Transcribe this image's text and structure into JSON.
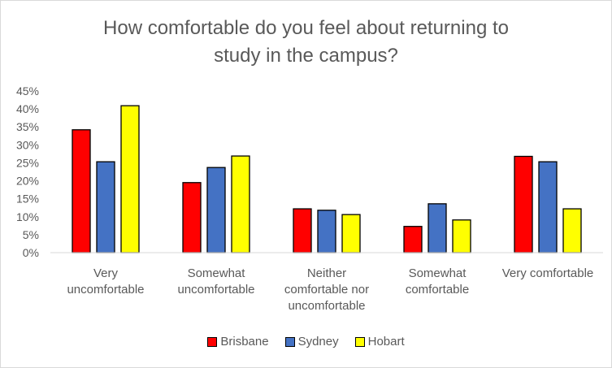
{
  "chart_data": {
    "type": "bar",
    "title": "How comfortable do you feel about returning to\nstudy in the campus?",
    "categories": [
      [
        "Very",
        "uncomfortable"
      ],
      [
        "Somewhat",
        "uncomfortable"
      ],
      [
        "Neither",
        "comfortable nor",
        "uncomfortable"
      ],
      [
        "Somewhat",
        "comfortable"
      ],
      [
        "Very comfortable"
      ]
    ],
    "series": [
      {
        "name": "Brisbane",
        "color": "#ff0000",
        "values": [
          34.2,
          19.5,
          12.2,
          7.3,
          26.8
        ]
      },
      {
        "name": "Sydney",
        "color": "#4472c4",
        "values": [
          25.3,
          23.7,
          11.8,
          13.6,
          25.3
        ]
      },
      {
        "name": "Hobart",
        "color": "#ffff00",
        "values": [
          40.9,
          26.9,
          10.6,
          9.1,
          12.2
        ]
      }
    ],
    "y_ticks": [
      "0%",
      "5%",
      "10%",
      "15%",
      "20%",
      "25%",
      "30%",
      "35%",
      "40%",
      "45%"
    ],
    "ylim": [
      0,
      45
    ],
    "grid": false,
    "legend_position": "bottom"
  }
}
